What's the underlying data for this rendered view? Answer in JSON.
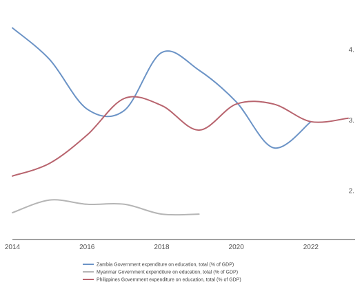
{
  "chart_data": {
    "type": "line",
    "title": "",
    "xlabel": "",
    "ylabel": "",
    "xlim": [
      2014,
      2023
    ],
    "ylim": [
      1.3,
      4.5
    ],
    "x_ticks": [
      2014,
      2016,
      2018,
      2020,
      2022
    ],
    "y_ticks": [
      2,
      3,
      4
    ],
    "y_tick_labels": [
      "2.",
      "3.",
      "4."
    ],
    "y_axis_side": "right",
    "grid": false,
    "legend_position": "bottom",
    "series": [
      {
        "name": "Zambia Government expenditure on education, total (% of GDP)",
        "color": "#6b93c6",
        "x": [
          2014,
          2015,
          2016,
          2017,
          2018,
          2019,
          2020,
          2021,
          2022
        ],
        "y": [
          4.3,
          3.85,
          3.15,
          3.13,
          3.95,
          3.7,
          3.25,
          2.6,
          2.97
        ]
      },
      {
        "name": "Myanmar Government expenditure on education, total (% of GDP)",
        "color": "#b5b5b5",
        "x": [
          2014,
          2015,
          2016,
          2017,
          2018,
          2019
        ],
        "y": [
          1.68,
          1.86,
          1.8,
          1.8,
          1.66,
          1.66
        ]
      },
      {
        "name": "Philippines Government expenditure on education, total (% of GDP)",
        "color": "#b8646e",
        "x": [
          2014,
          2015,
          2016,
          2017,
          2018,
          2019,
          2020,
          2021,
          2022,
          2023
        ],
        "y": [
          2.2,
          2.38,
          2.78,
          3.3,
          3.2,
          2.85,
          3.22,
          3.22,
          2.97,
          3.02
        ]
      }
    ]
  }
}
